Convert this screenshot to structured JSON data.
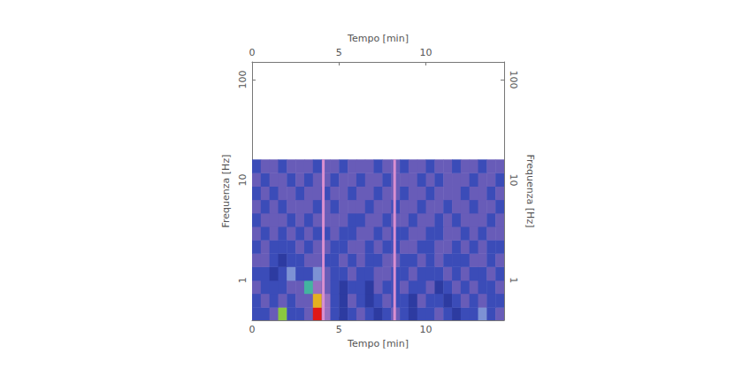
{
  "chart_data": {
    "type": "heatmap",
    "x_label": "Tempo [min]",
    "y_label": "Frequenza [Hz]",
    "xlim": [
      0,
      14.5
    ],
    "xticks": [
      0,
      5,
      10
    ],
    "ylim": [
      0.4,
      150
    ],
    "yticks": [
      1,
      10,
      100
    ],
    "log": "y",
    "time_bins": [
      0,
      0.5,
      1,
      1.5,
      2,
      2.5,
      3,
      3.5,
      4,
      4.5,
      5,
      5.5,
      6,
      6.5,
      7,
      7.5,
      8,
      8.5,
      9,
      9.5,
      10,
      10.5,
      11,
      11.5,
      12,
      12.5,
      13,
      13.5,
      14,
      14.5
    ],
    "freq_bins": [
      0.4,
      0.54,
      0.74,
      1.0,
      1.37,
      1.86,
      2.53,
      3.44,
      4.68,
      6.37,
      8.66,
      11.8,
      16
    ],
    "cells": [
      [
        2,
        2,
        3,
        7,
        2,
        2,
        3,
        10,
        4,
        2,
        1,
        2,
        3,
        2,
        1,
        2,
        3,
        2,
        1,
        2,
        2,
        3,
        2,
        1,
        2,
        2,
        5,
        2,
        3
      ],
      [
        2,
        3,
        2,
        3,
        2,
        3,
        3,
        8,
        4,
        2,
        1,
        3,
        2,
        1,
        2,
        3,
        2,
        2,
        1,
        3,
        2,
        2,
        1,
        2,
        3,
        2,
        3,
        2,
        2
      ],
      [
        3,
        2,
        2,
        2,
        3,
        3,
        6,
        4,
        3,
        2,
        1,
        2,
        2,
        1,
        3,
        2,
        2,
        3,
        2,
        2,
        3,
        1,
        2,
        3,
        2,
        3,
        2,
        2,
        3
      ],
      [
        2,
        2,
        1,
        2,
        5,
        2,
        2,
        5,
        3,
        2,
        2,
        3,
        2,
        2,
        3,
        3,
        2,
        2,
        3,
        2,
        2,
        2,
        3,
        2,
        3,
        2,
        2,
        3,
        2
      ],
      [
        3,
        3,
        2,
        1,
        2,
        2,
        3,
        3,
        2,
        2,
        3,
        2,
        3,
        2,
        2,
        3,
        3,
        2,
        2,
        3,
        2,
        3,
        2,
        2,
        2,
        3,
        3,
        2,
        3
      ],
      [
        2,
        3,
        2,
        2,
        2,
        3,
        2,
        3,
        3,
        2,
        2,
        3,
        3,
        2,
        3,
        2,
        2,
        3,
        3,
        2,
        2,
        3,
        3,
        2,
        3,
        2,
        3,
        2,
        2
      ],
      [
        3,
        2,
        3,
        2,
        3,
        2,
        3,
        2,
        2,
        3,
        2,
        2,
        3,
        3,
        2,
        3,
        2,
        2,
        3,
        3,
        2,
        2,
        3,
        3,
        2,
        3,
        2,
        3,
        3
      ],
      [
        2,
        3,
        3,
        3,
        2,
        3,
        2,
        3,
        3,
        3,
        3,
        2,
        2,
        3,
        3,
        2,
        3,
        3,
        2,
        3,
        3,
        2,
        3,
        2,
        3,
        3,
        3,
        2,
        3
      ],
      [
        3,
        2,
        3,
        2,
        3,
        3,
        3,
        2,
        3,
        2,
        3,
        3,
        3,
        2,
        3,
        3,
        2,
        3,
        3,
        2,
        3,
        3,
        2,
        3,
        3,
        2,
        3,
        3,
        2
      ],
      [
        2,
        3,
        2,
        3,
        3,
        2,
        3,
        3,
        2,
        3,
        3,
        2,
        3,
        3,
        2,
        3,
        3,
        2,
        3,
        3,
        2,
        3,
        3,
        3,
        2,
        3,
        3,
        2,
        3
      ],
      [
        3,
        2,
        3,
        3,
        2,
        3,
        2,
        3,
        3,
        2,
        3,
        3,
        2,
        3,
        3,
        2,
        3,
        3,
        3,
        2,
        3,
        2,
        3,
        3,
        3,
        2,
        3,
        3,
        2
      ],
      [
        2,
        3,
        3,
        2,
        3,
        3,
        3,
        2,
        3,
        3,
        2,
        3,
        3,
        3,
        2,
        3,
        3,
        2,
        3,
        3,
        2,
        3,
        3,
        2,
        3,
        3,
        2,
        3,
        3
      ]
    ],
    "color_range": [
      0,
      10
    ],
    "vertical_lines": [
      4.1,
      8.2
    ]
  }
}
